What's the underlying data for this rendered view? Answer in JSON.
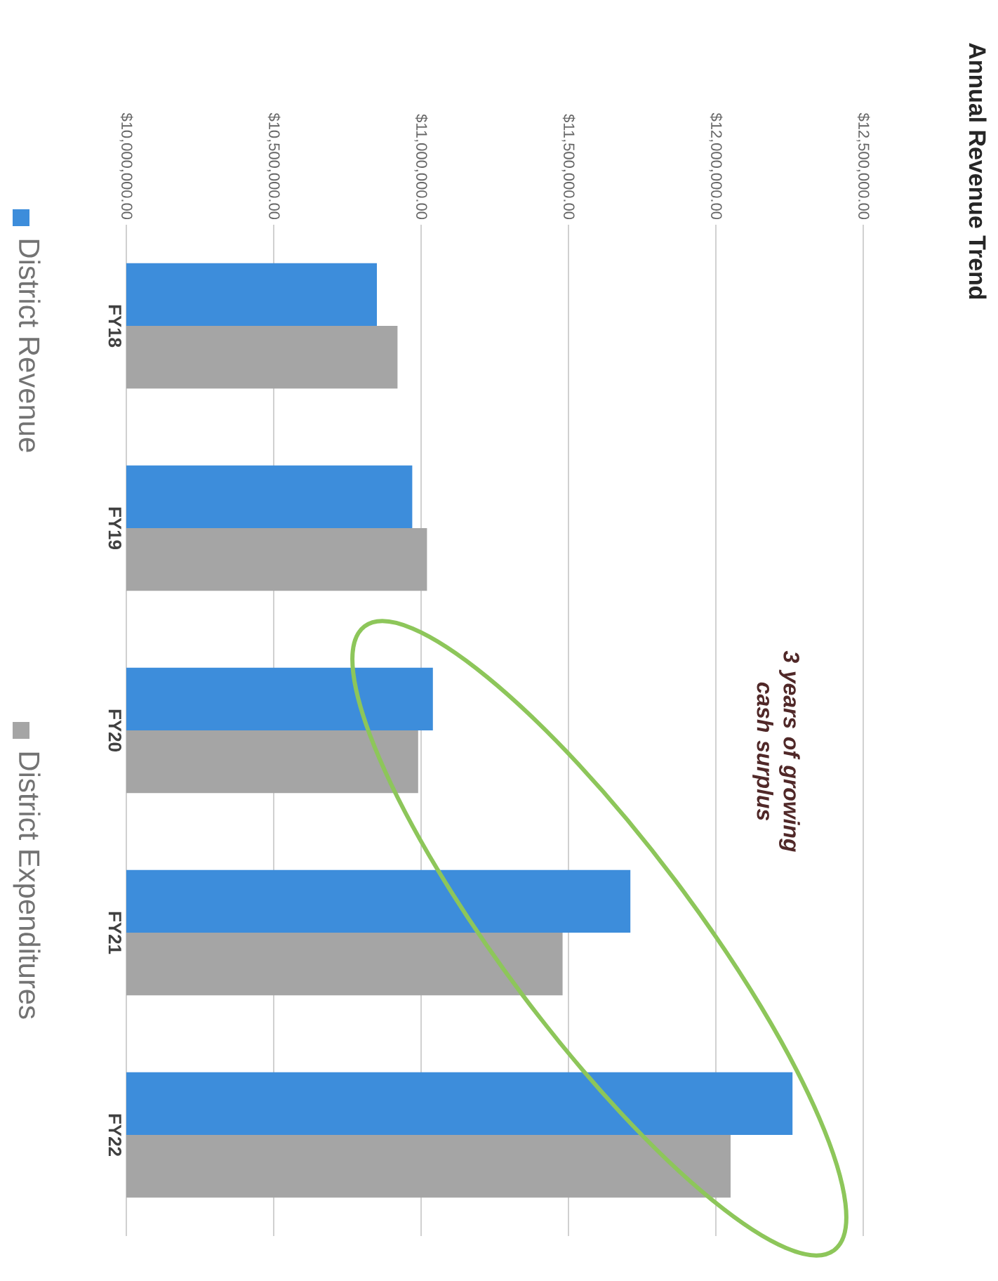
{
  "chart_data": {
    "type": "bar",
    "orientation": "horizontal",
    "title": "Annual Revenue Trend",
    "categories": [
      "FY18",
      "FY19",
      "FY20",
      "FY21",
      "FY22"
    ],
    "series": [
      {
        "name": "District Revenue",
        "color": "#3d8ddb",
        "values": [
          10850000,
          10970000,
          11040000,
          11710000,
          12260000
        ]
      },
      {
        "name": "District Expenditures",
        "color": "#a5a5a5",
        "values": [
          10920000,
          11020000,
          10990000,
          11480000,
          12050000
        ]
      }
    ],
    "xlim": [
      10000000,
      12500000
    ],
    "xticks": [
      {
        "value": 10000000,
        "label": "$10,000,000.00"
      },
      {
        "value": 10500000,
        "label": "$10,500,000.00"
      },
      {
        "value": 11000000,
        "label": "$11,000,000.00"
      },
      {
        "value": 11500000,
        "label": "$11,500,000.00"
      },
      {
        "value": 12000000,
        "label": "$12,000,000.00"
      },
      {
        "value": 12500000,
        "label": "$12,500,000.00"
      }
    ],
    "grid": "x",
    "legend": "left",
    "annotations": [
      "3 years of growing cash surplus"
    ]
  }
}
